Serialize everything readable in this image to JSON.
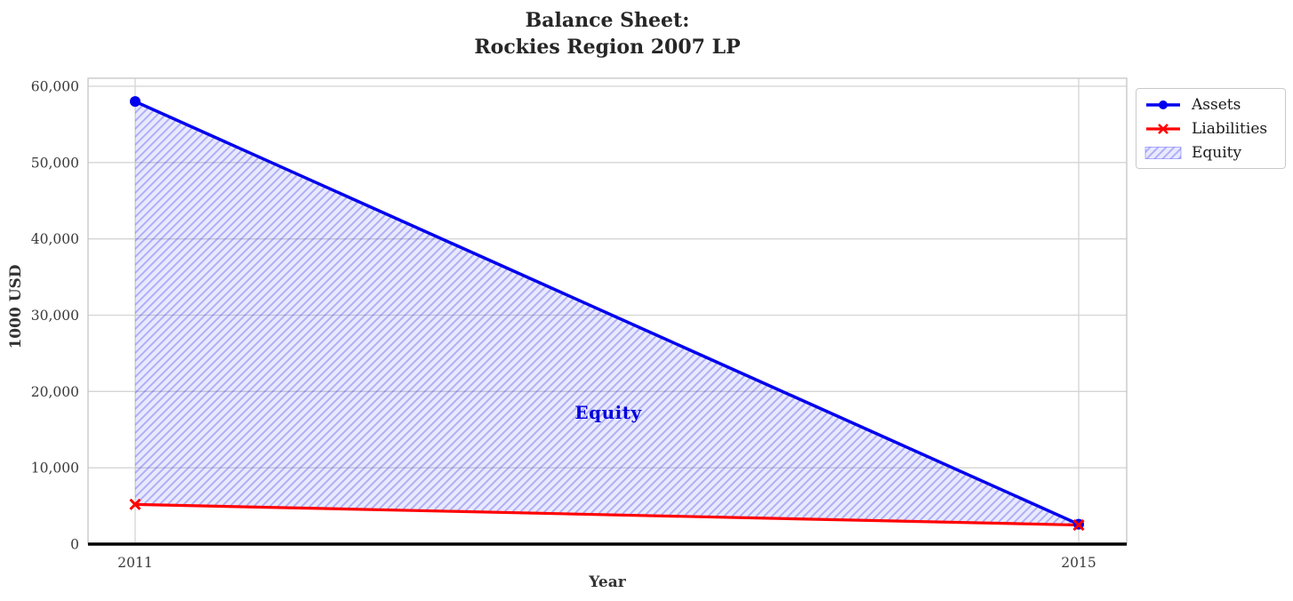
{
  "title": {
    "line1": "Balance Sheet:",
    "line2": "Rockies Region 2007 LP"
  },
  "chart_data": {
    "type": "line",
    "title": "Balance Sheet: Rockies Region 2007 LP",
    "xlabel": "Year",
    "ylabel": "1000 USD",
    "x": [
      2011,
      2015
    ],
    "series": [
      {
        "name": "Assets",
        "values": [
          58000,
          2600
        ],
        "color": "#0000ee",
        "marker": "circle",
        "line_width": 3.5
      },
      {
        "name": "Liabilities",
        "values": [
          5200,
          2500
        ],
        "color": "#ff0000",
        "marker": "x",
        "line_width": 3.2
      }
    ],
    "area": {
      "label": "Equity",
      "between": [
        "Assets",
        "Liabilities"
      ],
      "values": [
        52800,
        100
      ],
      "fill_color": "rgba(0,0,255,0.085)",
      "hatch_color": "rgba(40,40,230,0.30)",
      "label_color": "#0000dd",
      "hatch_style": "diagonal"
    },
    "xticks": [
      2011,
      2015
    ],
    "xtick_labels": [
      "2011",
      "2015"
    ],
    "yticks": [
      0,
      10000,
      20000,
      30000,
      40000,
      50000,
      60000
    ],
    "ytick_labels": [
      "0",
      "10,000",
      "20,000",
      "30,000",
      "40,000",
      "50,000",
      "60,000"
    ],
    "xlim": [
      2010.8,
      2015.2
    ],
    "ylim": [
      0,
      61100
    ],
    "grid": true,
    "legend_position": "upper-right-outside"
  },
  "colors": {
    "grid": "#d4d4d4",
    "spine": "#c9c9c9",
    "axis_bottom": "#000000",
    "tick_text": "#3a3a3a",
    "title_text": "#262626"
  }
}
